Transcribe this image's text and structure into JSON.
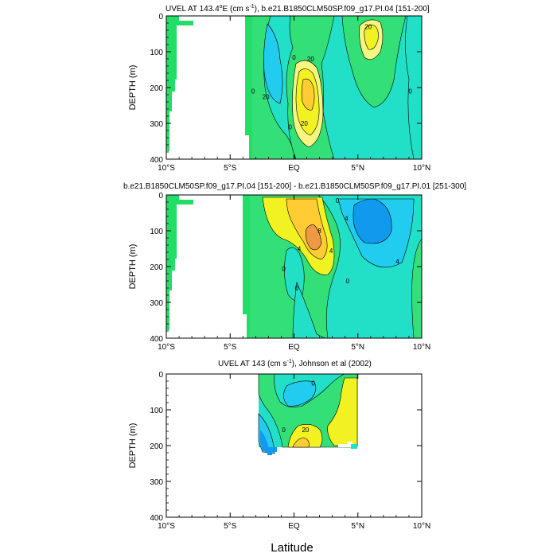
{
  "chart_data": [
    {
      "type": "contour",
      "title_pre": "UVEL AT 143.4",
      "title_deg": "o",
      "title_mid": "E (cm s",
      "title_exp": "-1",
      "title_post": "), b.e21.B1850CLM50SP.f09_g17.PI.04 [151-200]",
      "ylabel": "DEPTH (m)",
      "xlim": [
        -10,
        10
      ],
      "ylim": [
        0,
        400
      ],
      "xticks": [
        -10,
        -5,
        0,
        5,
        10
      ],
      "xticklabels": [
        "10°S",
        "5°S",
        "EQ",
        "5°N",
        "10°N"
      ],
      "yticks": [
        0,
        100,
        200,
        300,
        400
      ],
      "yticklabels": [
        "0",
        "100",
        "200",
        "300",
        "400"
      ],
      "contour_labels": [
        {
          "text": "20",
          "lon": 5.8,
          "depth": 30
        },
        {
          "text": "0",
          "lon": 0.0,
          "depth": 115
        },
        {
          "text": "20",
          "lon": 1.3,
          "depth": 120
        },
        {
          "text": "0",
          "lon": -3.2,
          "depth": 210
        },
        {
          "text": "20",
          "lon": -2.2,
          "depth": 225
        },
        {
          "text": "0",
          "lon": 9.1,
          "depth": 210
        },
        {
          "text": "0",
          "lon": -0.3,
          "depth": 310
        },
        {
          "text": "20",
          "lon": 0.8,
          "depth": 300
        }
      ]
    },
    {
      "type": "contour",
      "title": "b.e21.B1850CLM50SP.f09_g17.PI.04 [151-200] - b.e21.B1850CLM50SP.f09_g17.PI.01 [251-300]",
      "ylabel": "DEPTH (m)",
      "xlim": [
        -10,
        10
      ],
      "ylim": [
        0,
        400
      ],
      "xticks": [
        -10,
        -5,
        0,
        5,
        10
      ],
      "xticklabels": [
        "10°S",
        "5°S",
        "EQ",
        "5°N",
        "10°N"
      ],
      "yticks": [
        0,
        100,
        200,
        300,
        400
      ],
      "yticklabels": [
        "0",
        "100",
        "200",
        "300",
        "400"
      ],
      "contour_labels": [
        {
          "text": "0",
          "lon": 3.4,
          "depth": 15
        },
        {
          "text": "4",
          "lon": 4.1,
          "depth": 65
        },
        {
          "text": "8",
          "lon": 2.0,
          "depth": 100
        },
        {
          "text": "4",
          "lon": 0.4,
          "depth": 150
        },
        {
          "text": "4",
          "lon": 2.9,
          "depth": 155
        },
        {
          "text": "4",
          "lon": 8.1,
          "depth": 185
        },
        {
          "text": "0",
          "lon": -0.8,
          "depth": 205
        },
        {
          "text": "0",
          "lon": 0.2,
          "depth": 260
        },
        {
          "text": "0",
          "lon": 4.2,
          "depth": 240
        }
      ]
    },
    {
      "type": "contour",
      "title_pre": "UVEL AT 143 (cm s",
      "title_exp": "-1",
      "title_post": "), Johnson et al (2002)",
      "ylabel": "DEPTH (m)",
      "xlabel": "Latitude",
      "xlim": [
        -10,
        10
      ],
      "ylim": [
        0,
        400
      ],
      "xticks": [
        -10,
        -5,
        0,
        5,
        10
      ],
      "xticklabels": [
        "10°S",
        "5°S",
        "EQ",
        "5°N",
        "10°N"
      ],
      "yticks": [
        0,
        100,
        200,
        300,
        400
      ],
      "yticklabels": [
        "0",
        "100",
        "200",
        "300",
        "400"
      ],
      "contour_labels": [
        {
          "text": "0",
          "lon": 1.5,
          "depth": 25
        },
        {
          "text": "0",
          "lon": -0.8,
          "depth": 155
        },
        {
          "text": "20",
          "lon": 0.9,
          "depth": 155
        }
      ]
    }
  ],
  "colors": {
    "land": "#22dd66",
    "blue_deep": "#1199ee",
    "blue_mid": "#22ccee",
    "cyan_light": "#33eedd",
    "cyan": "#22e0c8",
    "green": "#33e077",
    "yellow": "#f2f222",
    "orange": "#ffcc33",
    "orange_dark": "#ee9944",
    "light_yellow": "#f5f580"
  }
}
